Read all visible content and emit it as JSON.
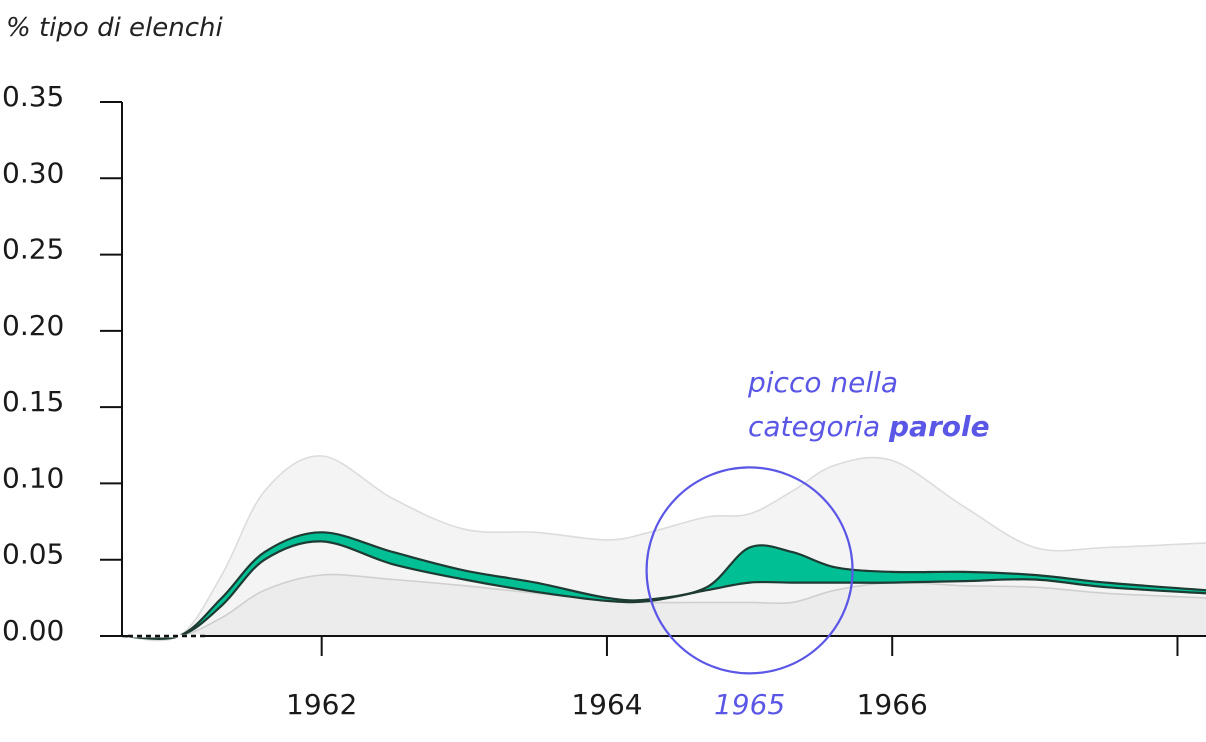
{
  "chart_data": {
    "type": "area",
    "ylabel": "% tipo di elenchi",
    "ylim": [
      0,
      0.35
    ],
    "yticks": [
      "0.00",
      "0.05",
      "0.10",
      "0.15",
      "0.20",
      "0.25",
      "0.30",
      "0.35"
    ],
    "xlim": [
      1960.6,
      1968.2
    ],
    "xticks": [
      {
        "value": 1962,
        "label": "1962"
      },
      {
        "value": 1964,
        "label": "1964"
      },
      {
        "value": 1966,
        "label": "1966"
      },
      {
        "value": 1968,
        "label": ""
      }
    ],
    "x": [
      1960.6,
      1961.0,
      1961.3,
      1961.6,
      1962.0,
      1962.5,
      1963.0,
      1963.5,
      1964.0,
      1964.3,
      1964.7,
      1965.0,
      1965.3,
      1965.6,
      1966.0,
      1966.5,
      1967.0,
      1967.5,
      1968.2
    ],
    "series": [
      {
        "values": [
          0.0,
          0.0,
          0.04,
          0.095,
          0.118,
          0.09,
          0.07,
          0.068,
          0.063,
          0.068,
          0.078,
          0.08,
          0.095,
          0.112,
          0.115,
          0.085,
          0.058,
          0.058,
          0.061
        ]
      },
      {
        "values": [
          0.0,
          0.0,
          0.025,
          0.055,
          0.068,
          0.055,
          0.043,
          0.035,
          0.025,
          0.024,
          0.032,
          0.058,
          0.055,
          0.045,
          0.042,
          0.042,
          0.04,
          0.035,
          0.03
        ]
      },
      {
        "values": [
          0.0,
          0.0,
          0.02,
          0.05,
          0.062,
          0.047,
          0.037,
          0.029,
          0.023,
          0.023,
          0.03,
          0.035,
          0.035,
          0.035,
          0.035,
          0.036,
          0.037,
          0.032,
          0.028
        ]
      },
      {
        "values": [
          0.0,
          0.0,
          0.012,
          0.03,
          0.04,
          0.037,
          0.033,
          0.028,
          0.024,
          0.022,
          0.022,
          0.022,
          0.022,
          0.03,
          0.035,
          0.033,
          0.032,
          0.028,
          0.025
        ]
      }
    ],
    "annotation": {
      "line1": "picco nella",
      "line2_prefix": "categoria ",
      "line2_bold": "parole",
      "x_highlight": "1965",
      "x_value": 1965,
      "y_value": 0.043
    },
    "colors": {
      "highlight_fill": "#00bf95",
      "highlight_line": "#1e3b33",
      "envelope_fill": "#f4f4f4",
      "envelope_line": "#dcdcdc",
      "accent": "#5b57e6",
      "axis": "#111111"
    }
  }
}
